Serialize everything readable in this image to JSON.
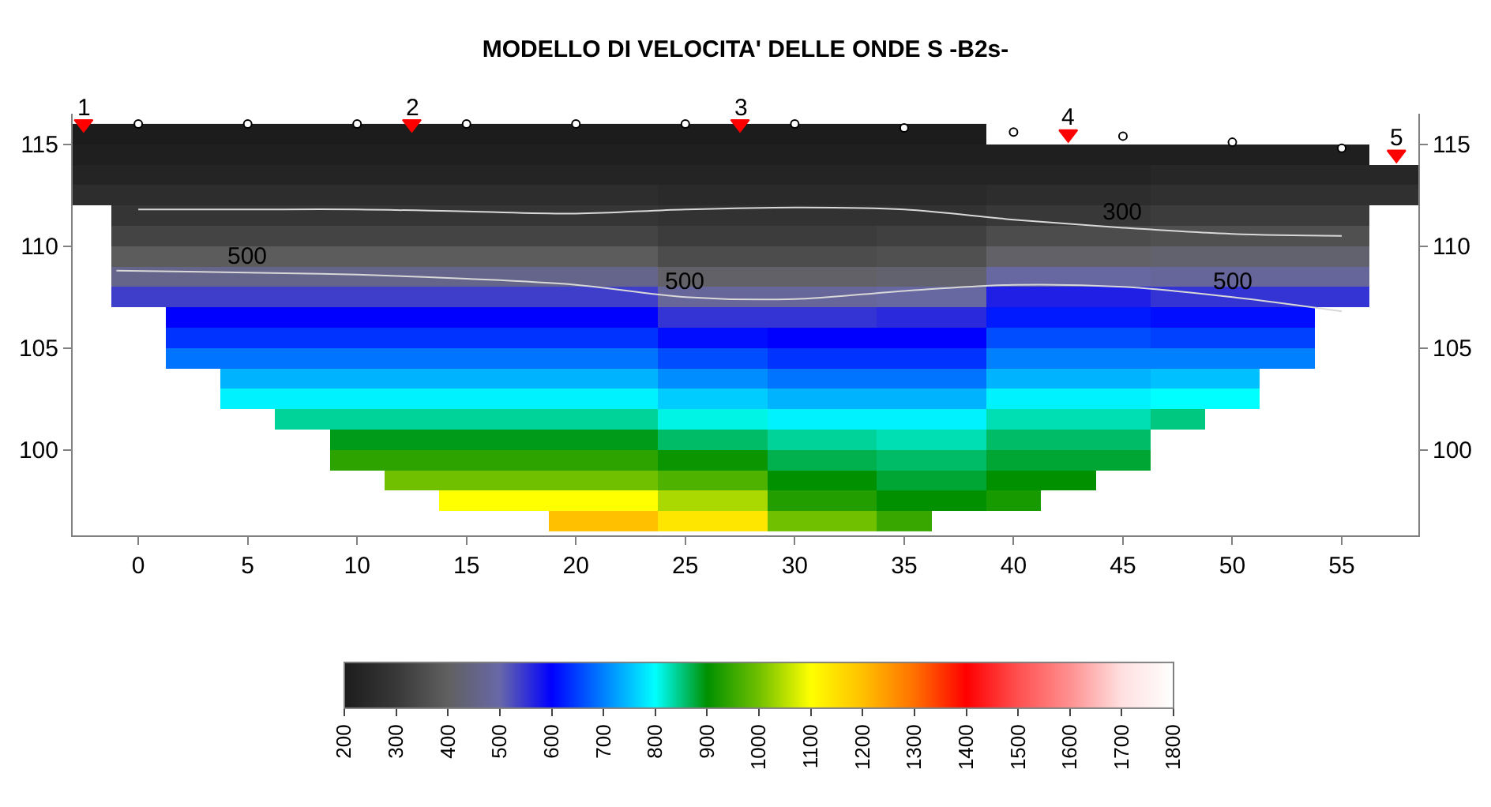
{
  "chart_data": {
    "type": "heatmap",
    "title": "MODELLO DI VELOCITA' DELLE ONDE S -B2s-",
    "x": [
      -2.5,
      0,
      2.5,
      5,
      7.5,
      10,
      12.5,
      15,
      17.5,
      20,
      22.5,
      25,
      27.5,
      30,
      32.5,
      35,
      37.5,
      40,
      42.5,
      45,
      47.5,
      50,
      52.5,
      55,
      57.5
    ],
    "y": [
      115.5,
      114.5,
      113.5,
      112.5,
      111.5,
      110.5,
      109.5,
      108.5,
      107.5,
      106.5,
      105.5,
      104.5,
      103.5,
      102.5,
      101.5,
      100.5,
      99.5,
      98.5,
      97.5,
      96.5
    ],
    "cells": [
      [
        200,
        200,
        200,
        200,
        200,
        200,
        200,
        200,
        200,
        200,
        200,
        200,
        200,
        200,
        200,
        200,
        200,
        null,
        null,
        null,
        null,
        null,
        null,
        null,
        null
      ],
      [
        210,
        210,
        210,
        210,
        210,
        210,
        210,
        210,
        210,
        210,
        210,
        210,
        210,
        210,
        210,
        210,
        210,
        210,
        210,
        210,
        210,
        210,
        210,
        210,
        null
      ],
      [
        230,
        230,
        230,
        230,
        230,
        230,
        230,
        230,
        230,
        230,
        230,
        230,
        230,
        230,
        230,
        230,
        230,
        230,
        230,
        230,
        240,
        240,
        240,
        240,
        240
      ],
      [
        260,
        260,
        260,
        260,
        260,
        260,
        260,
        260,
        260,
        260,
        260,
        250,
        250,
        250,
        250,
        250,
        250,
        260,
        260,
        260,
        270,
        270,
        270,
        270,
        270
      ],
      [
        null,
        290,
        290,
        290,
        290,
        290,
        290,
        290,
        290,
        290,
        290,
        280,
        280,
        280,
        280,
        280,
        280,
        300,
        300,
        300,
        310,
        310,
        310,
        310,
        null
      ],
      [
        null,
        330,
        330,
        330,
        330,
        330,
        330,
        330,
        330,
        330,
        330,
        310,
        310,
        310,
        310,
        320,
        320,
        350,
        350,
        350,
        360,
        360,
        360,
        360,
        null
      ],
      [
        null,
        390,
        390,
        390,
        390,
        390,
        390,
        390,
        390,
        390,
        390,
        350,
        350,
        350,
        350,
        360,
        360,
        410,
        410,
        410,
        420,
        420,
        420,
        420,
        null
      ],
      [
        null,
        460,
        460,
        460,
        460,
        460,
        460,
        460,
        460,
        460,
        460,
        410,
        410,
        410,
        410,
        420,
        420,
        490,
        490,
        490,
        480,
        480,
        480,
        480,
        null
      ],
      [
        null,
        540,
        540,
        540,
        540,
        540,
        540,
        540,
        540,
        540,
        540,
        480,
        480,
        480,
        480,
        490,
        490,
        570,
        570,
        570,
        550,
        550,
        550,
        550,
        null
      ],
      [
        null,
        null,
        600,
        600,
        600,
        600,
        600,
        600,
        600,
        600,
        600,
        550,
        550,
        550,
        550,
        560,
        560,
        620,
        620,
        620,
        610,
        610,
        610,
        null,
        null
      ],
      [
        null,
        null,
        640,
        640,
        640,
        640,
        640,
        640,
        640,
        640,
        640,
        610,
        610,
        600,
        600,
        600,
        600,
        660,
        660,
        660,
        650,
        650,
        650,
        null,
        null
      ],
      [
        null,
        null,
        690,
        690,
        690,
        690,
        690,
        690,
        690,
        690,
        690,
        660,
        660,
        640,
        640,
        640,
        640,
        700,
        700,
        700,
        700,
        700,
        700,
        null,
        null
      ],
      [
        null,
        null,
        null,
        740,
        740,
        740,
        740,
        740,
        740,
        740,
        740,
        710,
        710,
        690,
        690,
        690,
        690,
        740,
        740,
        740,
        750,
        750,
        null,
        null,
        null
      ],
      [
        null,
        null,
        null,
        790,
        790,
        790,
        790,
        790,
        790,
        790,
        790,
        760,
        760,
        740,
        740,
        740,
        740,
        790,
        790,
        790,
        800,
        800,
        null,
        null,
        null
      ],
      [
        null,
        null,
        null,
        null,
        840,
        840,
        840,
        840,
        840,
        840,
        840,
        810,
        810,
        790,
        790,
        790,
        790,
        830,
        830,
        830,
        850,
        null,
        null,
        null,
        null
      ],
      [
        null,
        null,
        null,
        null,
        null,
        890,
        890,
        890,
        890,
        890,
        890,
        860,
        860,
        840,
        840,
        830,
        830,
        860,
        860,
        860,
        null,
        null,
        null,
        null,
        null
      ],
      [
        null,
        null,
        null,
        null,
        null,
        940,
        940,
        940,
        940,
        940,
        940,
        910,
        910,
        870,
        870,
        860,
        860,
        880,
        880,
        880,
        null,
        null,
        null,
        null,
        null
      ],
      [
        null,
        null,
        null,
        null,
        null,
        null,
        1000,
        1000,
        1000,
        1000,
        1000,
        970,
        970,
        900,
        900,
        880,
        880,
        900,
        900,
        null,
        null,
        null,
        null,
        null,
        null
      ],
      [
        null,
        null,
        null,
        null,
        null,
        null,
        null,
        1100,
        1100,
        1100,
        1100,
        1040,
        1040,
        930,
        930,
        900,
        900,
        920,
        null,
        null,
        null,
        null,
        null,
        null,
        null
      ],
      [
        null,
        null,
        null,
        null,
        null,
        null,
        null,
        null,
        null,
        1200,
        1200,
        1140,
        1140,
        1000,
        1000,
        950,
        null,
        null,
        null,
        null,
        null,
        null,
        null,
        null,
        null
      ]
    ],
    "clim": [
      200,
      1800
    ],
    "cticks": [
      200,
      300,
      400,
      500,
      600,
      700,
      800,
      900,
      1000,
      1100,
      1200,
      1300,
      1400,
      1500,
      1600,
      1700,
      1800
    ],
    "colors": [
      "#1c1c1c",
      "#383838",
      "#606060",
      "#6868a8",
      "#0000ff",
      "#0080ff",
      "#00ffff",
      "#009000",
      "#70c000",
      "#ffff00",
      "#ffc000",
      "#ff7000",
      "#ff0000",
      "#ff5050",
      "#ff9090",
      "#ffe0e0",
      "#ffffff"
    ],
    "xlim": [
      -3,
      58.5
    ],
    "xticks": [
      0,
      5,
      10,
      15,
      20,
      25,
      30,
      35,
      40,
      45,
      50,
      55
    ],
    "ylim": [
      95.8,
      116.5
    ],
    "yticks": [
      100,
      105,
      110,
      115
    ],
    "y2lim": [
      95.8,
      116.5
    ],
    "y2ticks": [
      100,
      105,
      110,
      115
    ],
    "series": [
      {
        "type": "line",
        "color": "#d8d8d8",
        "x": [
          -1,
          5,
          10,
          15,
          20,
          25,
          30,
          35,
          40,
          45,
          50,
          55
        ],
        "values": [
          108.8,
          108.7,
          108.6,
          108.4,
          108.1,
          107.5,
          107.4,
          107.8,
          108.1,
          108.0,
          107.5,
          106.8
        ]
      },
      {
        "type": "line",
        "color": "#d8d8d8",
        "x": [
          0,
          5,
          10,
          15,
          20,
          25,
          30,
          35,
          40,
          45,
          50,
          55
        ],
        "values": [
          111.8,
          111.8,
          111.8,
          111.7,
          111.6,
          111.8,
          111.9,
          111.8,
          111.3,
          110.9,
          110.6,
          110.5
        ]
      },
      {
        "type": "scatter",
        "axis": "y2",
        "marker": "circle",
        "color": "#ffffff",
        "x": [
          0,
          5,
          10,
          15,
          20,
          25,
          30,
          35,
          40,
          45,
          50,
          55
        ],
        "values": [
          116,
          116,
          116,
          116,
          116,
          116,
          116,
          115.8,
          115.6,
          115.4,
          115.1,
          114.8
        ]
      },
      {
        "type": "scatter",
        "marker": "triangle",
        "color": "#ff0000",
        "x": [
          -2.5,
          12.5,
          27.5,
          42.5,
          57.5
        ],
        "values": [
          116,
          116,
          116,
          115.5,
          114.5
        ]
      }
    ],
    "annotations": [
      {
        "text": "500",
        "x": 5,
        "y": 108.7
      },
      {
        "text": "500",
        "x": 25,
        "y": 107.5
      },
      {
        "text": "500",
        "x": 50,
        "y": 107.5
      },
      {
        "text": "300",
        "x": 45,
        "y": 110.9
      },
      {
        "text": "1",
        "x": -2.5,
        "y": 116
      },
      {
        "text": "2",
        "x": 12.5,
        "y": 116
      },
      {
        "text": "3",
        "x": 27.5,
        "y": 116
      },
      {
        "text": "4",
        "x": 42.5,
        "y": 115.5
      },
      {
        "text": "5",
        "x": 57.5,
        "y": 114.5
      }
    ]
  }
}
